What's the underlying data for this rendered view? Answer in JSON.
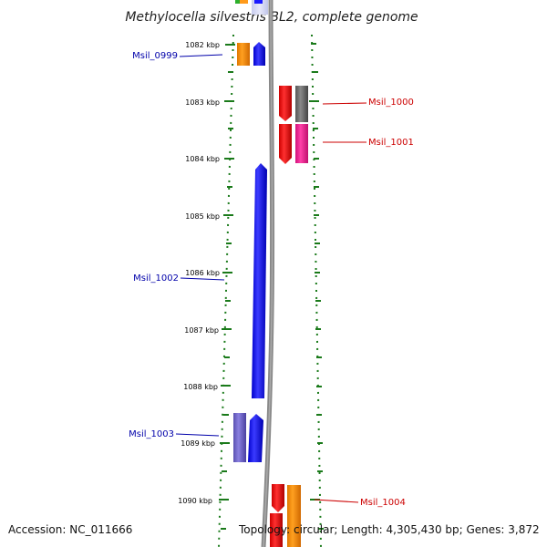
{
  "title": "Methylocella silvestris BL2, complete genome",
  "accession": "Accession: NC_011666",
  "topology": "Topology: circular; Length: 4,305,430 bp; Genes: 3,872",
  "kbp_labels": [
    "1082 kbp",
    "1083 kbp",
    "1084 kbp",
    "1085 kbp",
    "1086 kbp",
    "1087 kbp",
    "1088 kbp",
    "1089 kbp",
    "1090 kbp"
  ],
  "gene_labels": [
    {
      "name": "Msil_0999",
      "color": "#0000aa"
    },
    {
      "name": "Msil_1000",
      "color": "#cc0000"
    },
    {
      "name": "Msil_1001",
      "color": "#cc0000"
    },
    {
      "name": "Msil_1002",
      "color": "#0000aa"
    },
    {
      "name": "Msil_1003",
      "color": "#0000aa"
    },
    {
      "name": "Msil_1004",
      "color": "#cc0000"
    }
  ],
  "colors": {
    "forward_strand": "#0000ee",
    "reverse_strand": "#ff0000",
    "tick_green": "#1a7a1a",
    "backbone": "#888888"
  }
}
